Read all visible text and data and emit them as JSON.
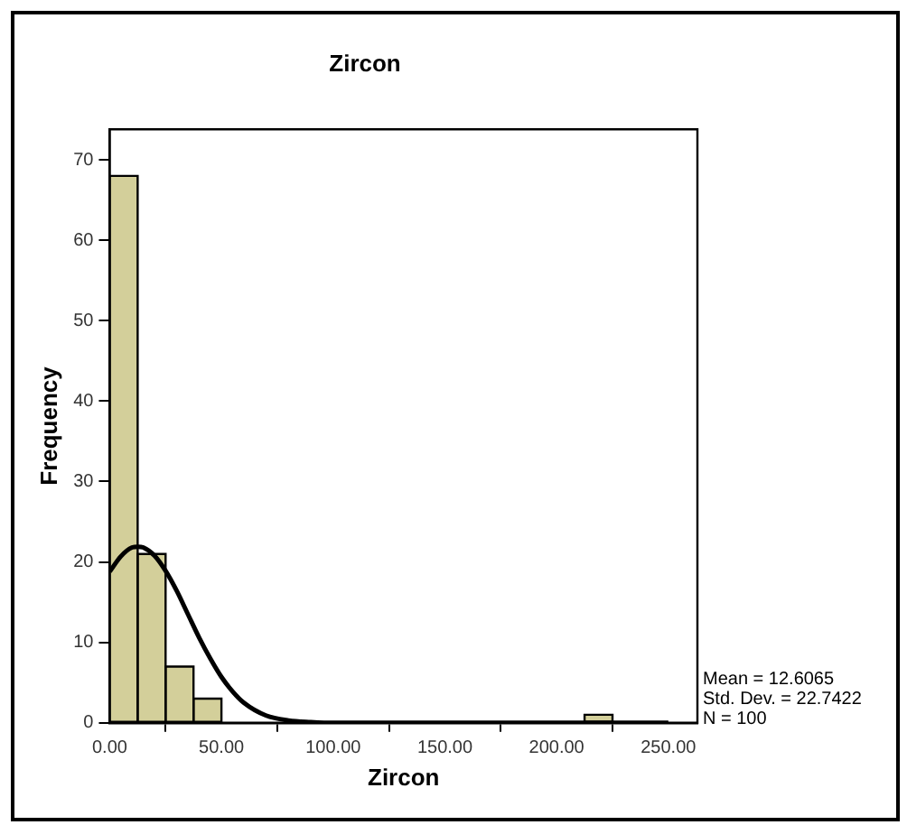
{
  "chart_data": {
    "type": "histogram",
    "title": "Zircon",
    "xlabel": "Zircon",
    "ylabel": "Frequency",
    "bins": [
      0,
      12.5,
      25,
      37.5,
      50,
      62.5,
      75,
      87.5,
      100,
      112.5,
      125,
      137.5,
      150,
      162.5,
      175,
      187.5,
      200,
      212.5,
      225
    ],
    "values": [
      68,
      21,
      7,
      3,
      0,
      0,
      0,
      0,
      0,
      0,
      0,
      0,
      0,
      0,
      0,
      0,
      0,
      1
    ],
    "color": "#d3cf9a",
    "series": [
      {
        "type": "line",
        "color": "#000000",
        "x": [
          0,
          5,
          10,
          12.6,
          15,
          20,
          25,
          30,
          35,
          40,
          45,
          50,
          55,
          60,
          70,
          80,
          90,
          100,
          150,
          200,
          250
        ],
        "values": [
          18.8,
          20.7,
          21.8,
          21.9,
          21.8,
          20.8,
          18.9,
          16.4,
          13.5,
          10.6,
          8,
          5.7,
          3.9,
          2.5,
          0.9,
          0.3,
          0.1,
          0,
          0,
          0,
          0
        ]
      }
    ],
    "xlim": [
      0,
      263
    ],
    "xticks": [
      {
        "value": 0,
        "label": "0.00"
      },
      {
        "value": 50,
        "label": "50.00"
      },
      {
        "value": 100,
        "label": "100.00"
      },
      {
        "value": 150,
        "label": "150.00"
      },
      {
        "value": 200,
        "label": "200.00"
      },
      {
        "value": 250,
        "label": "250.00"
      }
    ],
    "ylim": [
      0,
      73.8
    ],
    "yticks": [
      0,
      10,
      20,
      30,
      40,
      50,
      60,
      70
    ],
    "annotations": [
      "Mean = 12.6065",
      "Std. Dev. = 22.7422",
      "N = 100"
    ],
    "legend": false,
    "marker": "none",
    "line_style": "solid"
  }
}
